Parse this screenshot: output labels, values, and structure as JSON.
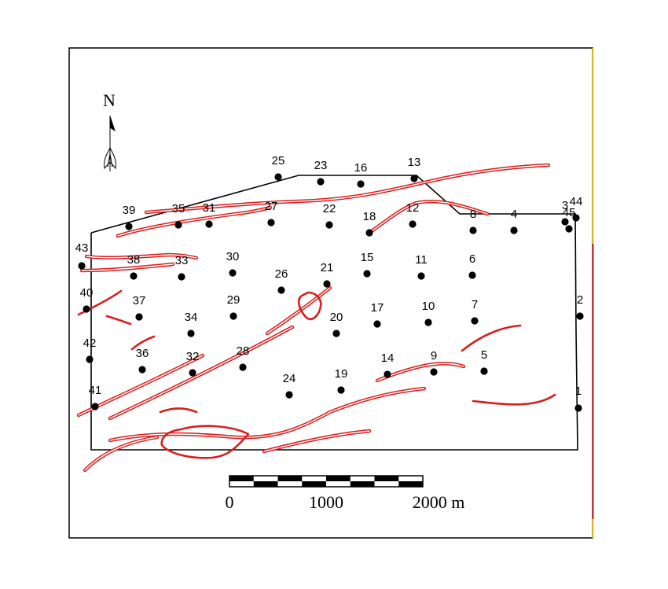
{
  "colors": {
    "fault": "#d81e1e",
    "boundary": "#000000",
    "well": "#000000",
    "edge_yellow": "#f2d200",
    "edge_red": "#d81e1e"
  },
  "north_arrow": {
    "label": "N",
    "icon": "north-arrow-icon"
  },
  "scale_bar": {
    "labels": [
      "0",
      "1000",
      "2000 m"
    ],
    "segments": 8
  },
  "wells": [
    {
      "id": "1"
    },
    {
      "id": "2"
    },
    {
      "id": "3"
    },
    {
      "id": "4"
    },
    {
      "id": "5"
    },
    {
      "id": "6"
    },
    {
      "id": "7"
    },
    {
      "id": "8"
    },
    {
      "id": "9"
    },
    {
      "id": "10"
    },
    {
      "id": "11"
    },
    {
      "id": "12"
    },
    {
      "id": "13"
    },
    {
      "id": "14"
    },
    {
      "id": "15"
    },
    {
      "id": "16"
    },
    {
      "id": "17"
    },
    {
      "id": "18"
    },
    {
      "id": "19"
    },
    {
      "id": "20"
    },
    {
      "id": "21"
    },
    {
      "id": "22"
    },
    {
      "id": "23"
    },
    {
      "id": "24"
    },
    {
      "id": "25"
    },
    {
      "id": "26"
    },
    {
      "id": "27"
    },
    {
      "id": "28"
    },
    {
      "id": "29"
    },
    {
      "id": "30"
    },
    {
      "id": "31"
    },
    {
      "id": "32"
    },
    {
      "id": "33"
    },
    {
      "id": "34"
    },
    {
      "id": "35"
    },
    {
      "id": "36"
    },
    {
      "id": "37"
    },
    {
      "id": "38"
    },
    {
      "id": "39"
    },
    {
      "id": "40"
    },
    {
      "id": "41"
    },
    {
      "id": "42"
    },
    {
      "id": "43"
    },
    {
      "id": "44"
    },
    {
      "id": "45"
    }
  ]
}
